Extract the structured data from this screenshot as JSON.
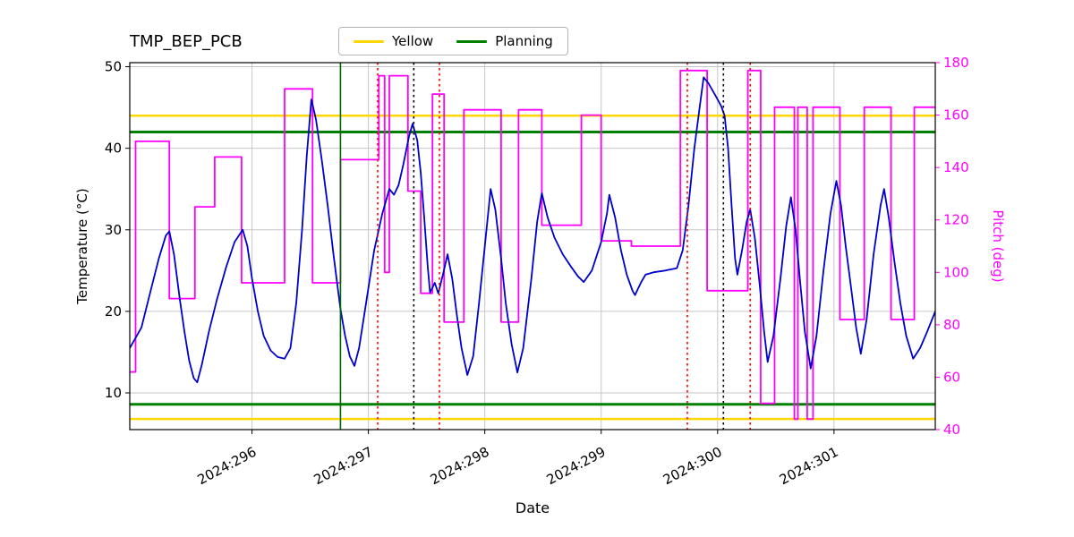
{
  "chart_data": {
    "type": "line",
    "title": "TMP_BEP_PCB",
    "xlabel": "Date",
    "grid": true,
    "xlim": [
      294.95,
      301.87
    ],
    "x_ticks": [
      296,
      297,
      298,
      299,
      300,
      301
    ],
    "x_tick_labels": [
      "2024:296",
      "2024:297",
      "2024:298",
      "2024:299",
      "2024:300",
      "2024:301"
    ],
    "left_axis": {
      "label": "Temperature (°C)",
      "lim": [
        5.5,
        50.5
      ],
      "ticks": [
        10,
        20,
        30,
        40,
        50
      ],
      "color": "#000000"
    },
    "right_axis": {
      "label": "Pitch (deg)",
      "lim": [
        40,
        180
      ],
      "ticks": [
        40,
        60,
        80,
        100,
        120,
        140,
        160,
        180
      ],
      "color": "#ff00ff"
    },
    "legend": {
      "position": "top-center",
      "entries": [
        {
          "label": "Yellow",
          "color": "#ffd700"
        },
        {
          "label": "Planning",
          "color": "#008000"
        }
      ]
    },
    "hlines": [
      {
        "name": "yellow-limit-high",
        "y": 44.0,
        "color": "#ffd700",
        "width": 2.5
      },
      {
        "name": "yellow-limit-low",
        "y": 6.8,
        "color": "#ffd700",
        "width": 2.5
      },
      {
        "name": "planning-limit-high",
        "y": 42.0,
        "color": "#008000",
        "width": 3
      },
      {
        "name": "planning-limit-low",
        "y": 8.6,
        "color": "#008000",
        "width": 3
      }
    ],
    "vlines": [
      {
        "name": "event-green",
        "x": 296.76,
        "color": "#006400",
        "style": "solid"
      },
      {
        "name": "event-red-1",
        "x": 297.08,
        "color": "#ff0000",
        "style": "dotted"
      },
      {
        "name": "event-black-1",
        "x": 297.39,
        "color": "#000000",
        "style": "dotted"
      },
      {
        "name": "event-red-2",
        "x": 297.61,
        "color": "#ff0000",
        "style": "dotted"
      },
      {
        "name": "event-red-3",
        "x": 299.74,
        "color": "#ff0000",
        "style": "dotted"
      },
      {
        "name": "event-black-2",
        "x": 300.05,
        "color": "#000000",
        "style": "dotted"
      },
      {
        "name": "event-red-4",
        "x": 300.28,
        "color": "#ff0000",
        "style": "dotted"
      }
    ],
    "series": [
      {
        "name": "pitch",
        "axis": "right",
        "color": "#ff00ff",
        "width": 1.8,
        "points": [
          [
            294.95,
            62
          ],
          [
            295.0,
            62
          ],
          [
            295.0,
            150
          ],
          [
            295.29,
            150
          ],
          [
            295.29,
            90
          ],
          [
            295.51,
            90
          ],
          [
            295.51,
            125
          ],
          [
            295.68,
            125
          ],
          [
            295.68,
            144
          ],
          [
            295.91,
            144
          ],
          [
            295.91,
            96
          ],
          [
            296.28,
            96
          ],
          [
            296.28,
            170
          ],
          [
            296.52,
            170
          ],
          [
            296.52,
            96
          ],
          [
            296.76,
            96
          ],
          [
            296.76,
            143
          ],
          [
            297.09,
            143
          ],
          [
            297.09,
            175
          ],
          [
            297.14,
            175
          ],
          [
            297.14,
            100
          ],
          [
            297.18,
            100
          ],
          [
            297.18,
            175
          ],
          [
            297.34,
            175
          ],
          [
            297.34,
            131
          ],
          [
            297.45,
            131
          ],
          [
            297.45,
            92
          ],
          [
            297.55,
            92
          ],
          [
            297.55,
            168
          ],
          [
            297.65,
            168
          ],
          [
            297.65,
            81
          ],
          [
            297.82,
            81
          ],
          [
            297.82,
            162
          ],
          [
            298.14,
            162
          ],
          [
            298.14,
            81
          ],
          [
            298.29,
            81
          ],
          [
            298.29,
            162
          ],
          [
            298.49,
            162
          ],
          [
            298.49,
            118
          ],
          [
            298.83,
            118
          ],
          [
            298.83,
            160
          ],
          [
            299.0,
            160
          ],
          [
            299.0,
            112
          ],
          [
            299.26,
            112
          ],
          [
            299.26,
            110
          ],
          [
            299.68,
            110
          ],
          [
            299.68,
            177
          ],
          [
            299.91,
            177
          ],
          [
            299.91,
            93
          ],
          [
            300.26,
            93
          ],
          [
            300.26,
            177
          ],
          [
            300.37,
            177
          ],
          [
            300.37,
            50
          ],
          [
            300.49,
            50
          ],
          [
            300.49,
            163
          ],
          [
            300.66,
            163
          ],
          [
            300.66,
            44
          ],
          [
            300.69,
            44
          ],
          [
            300.69,
            163
          ],
          [
            300.77,
            163
          ],
          [
            300.77,
            44
          ],
          [
            300.82,
            44
          ],
          [
            300.82,
            163
          ],
          [
            301.05,
            163
          ],
          [
            301.05,
            82
          ],
          [
            301.26,
            82
          ],
          [
            301.26,
            163
          ],
          [
            301.49,
            163
          ],
          [
            301.49,
            82
          ],
          [
            301.69,
            82
          ],
          [
            301.69,
            163
          ],
          [
            301.87,
            163
          ]
        ]
      },
      {
        "name": "temperature",
        "axis": "left",
        "color": "#0000cd",
        "width": 1.8,
        "points": [
          [
            294.95,
            15.5
          ],
          [
            295.05,
            18.0
          ],
          [
            295.12,
            22.0
          ],
          [
            295.2,
            26.5
          ],
          [
            295.26,
            29.3
          ],
          [
            295.29,
            29.8
          ],
          [
            295.33,
            27.0
          ],
          [
            295.38,
            21.5
          ],
          [
            295.42,
            17.5
          ],
          [
            295.46,
            14.0
          ],
          [
            295.5,
            11.8
          ],
          [
            295.53,
            11.3
          ],
          [
            295.57,
            13.5
          ],
          [
            295.63,
            17.5
          ],
          [
            295.7,
            21.5
          ],
          [
            295.78,
            25.5
          ],
          [
            295.85,
            28.5
          ],
          [
            295.92,
            30.0
          ],
          [
            295.96,
            28.0
          ],
          [
            296.0,
            24.0
          ],
          [
            296.05,
            20.0
          ],
          [
            296.1,
            17.0
          ],
          [
            296.16,
            15.2
          ],
          [
            296.22,
            14.4
          ],
          [
            296.28,
            14.2
          ],
          [
            296.33,
            15.5
          ],
          [
            296.38,
            21.0
          ],
          [
            296.43,
            30.0
          ],
          [
            296.47,
            39.0
          ],
          [
            296.51,
            46.0
          ],
          [
            296.55,
            43.5
          ],
          [
            296.6,
            38.5
          ],
          [
            296.65,
            33.0
          ],
          [
            296.7,
            27.0
          ],
          [
            296.74,
            22.5
          ],
          [
            296.76,
            20.3
          ],
          [
            296.8,
            17.0
          ],
          [
            296.84,
            14.5
          ],
          [
            296.88,
            13.3
          ],
          [
            296.92,
            15.5
          ],
          [
            296.98,
            21.0
          ],
          [
            297.05,
            27.5
          ],
          [
            297.12,
            32.0
          ],
          [
            297.18,
            35.0
          ],
          [
            297.22,
            34.3
          ],
          [
            297.26,
            35.5
          ],
          [
            297.3,
            38.0
          ],
          [
            297.35,
            41.5
          ],
          [
            297.38,
            43.0
          ],
          [
            297.42,
            41.0
          ],
          [
            297.45,
            37.0
          ],
          [
            297.48,
            31.5
          ],
          [
            297.51,
            25.5
          ],
          [
            297.53,
            22.3
          ],
          [
            297.57,
            23.5
          ],
          [
            297.6,
            22.2
          ],
          [
            297.64,
            24.5
          ],
          [
            297.68,
            27.0
          ],
          [
            297.72,
            24.0
          ],
          [
            297.76,
            19.5
          ],
          [
            297.8,
            15.5
          ],
          [
            297.85,
            12.2
          ],
          [
            297.9,
            14.5
          ],
          [
            297.95,
            21.0
          ],
          [
            298.0,
            28.0
          ],
          [
            298.05,
            35.0
          ],
          [
            298.09,
            32.5
          ],
          [
            298.14,
            26.5
          ],
          [
            298.18,
            21.0
          ],
          [
            298.23,
            16.0
          ],
          [
            298.28,
            12.5
          ],
          [
            298.33,
            15.5
          ],
          [
            298.4,
            24.0
          ],
          [
            298.45,
            31.0
          ],
          [
            298.49,
            34.5
          ],
          [
            298.54,
            31.5
          ],
          [
            298.6,
            29.0
          ],
          [
            298.67,
            27.0
          ],
          [
            298.74,
            25.5
          ],
          [
            298.8,
            24.3
          ],
          [
            298.85,
            23.6
          ],
          [
            298.92,
            25.0
          ],
          [
            299.0,
            28.5
          ],
          [
            299.05,
            32.0
          ],
          [
            299.07,
            34.3
          ],
          [
            299.12,
            31.5
          ],
          [
            299.17,
            27.5
          ],
          [
            299.22,
            24.5
          ],
          [
            299.27,
            22.5
          ],
          [
            299.29,
            22.0
          ],
          [
            299.34,
            23.5
          ],
          [
            299.38,
            24.5
          ],
          [
            299.45,
            24.8
          ],
          [
            299.55,
            25.0
          ],
          [
            299.65,
            25.3
          ],
          [
            299.7,
            27.5
          ],
          [
            299.75,
            33.0
          ],
          [
            299.8,
            40.0
          ],
          [
            299.85,
            45.5
          ],
          [
            299.88,
            48.7
          ],
          [
            299.92,
            48.0
          ],
          [
            299.98,
            46.5
          ],
          [
            300.03,
            45.2
          ],
          [
            300.06,
            44.0
          ],
          [
            300.09,
            40.0
          ],
          [
            300.12,
            33.0
          ],
          [
            300.15,
            26.5
          ],
          [
            300.17,
            24.5
          ],
          [
            300.21,
            27.5
          ],
          [
            300.25,
            31.0
          ],
          [
            300.28,
            32.5
          ],
          [
            300.32,
            29.0
          ],
          [
            300.36,
            23.5
          ],
          [
            300.4,
            17.5
          ],
          [
            300.43,
            13.8
          ],
          [
            300.48,
            17.0
          ],
          [
            300.54,
            24.0
          ],
          [
            300.59,
            30.5
          ],
          [
            300.63,
            34.0
          ],
          [
            300.67,
            30.0
          ],
          [
            300.71,
            23.5
          ],
          [
            300.75,
            17.5
          ],
          [
            300.8,
            13.0
          ],
          [
            300.85,
            17.0
          ],
          [
            300.91,
            25.0
          ],
          [
            300.97,
            32.0
          ],
          [
            301.02,
            36.0
          ],
          [
            301.06,
            33.0
          ],
          [
            301.1,
            28.0
          ],
          [
            301.15,
            22.5
          ],
          [
            301.19,
            18.0
          ],
          [
            301.23,
            14.8
          ],
          [
            301.28,
            19.0
          ],
          [
            301.34,
            27.0
          ],
          [
            301.4,
            33.0
          ],
          [
            301.43,
            35.0
          ],
          [
            301.47,
            31.5
          ],
          [
            301.52,
            26.0
          ],
          [
            301.57,
            21.0
          ],
          [
            301.62,
            17.0
          ],
          [
            301.68,
            14.2
          ],
          [
            301.74,
            15.5
          ],
          [
            301.8,
            17.5
          ],
          [
            301.87,
            20.0
          ]
        ]
      }
    ]
  }
}
